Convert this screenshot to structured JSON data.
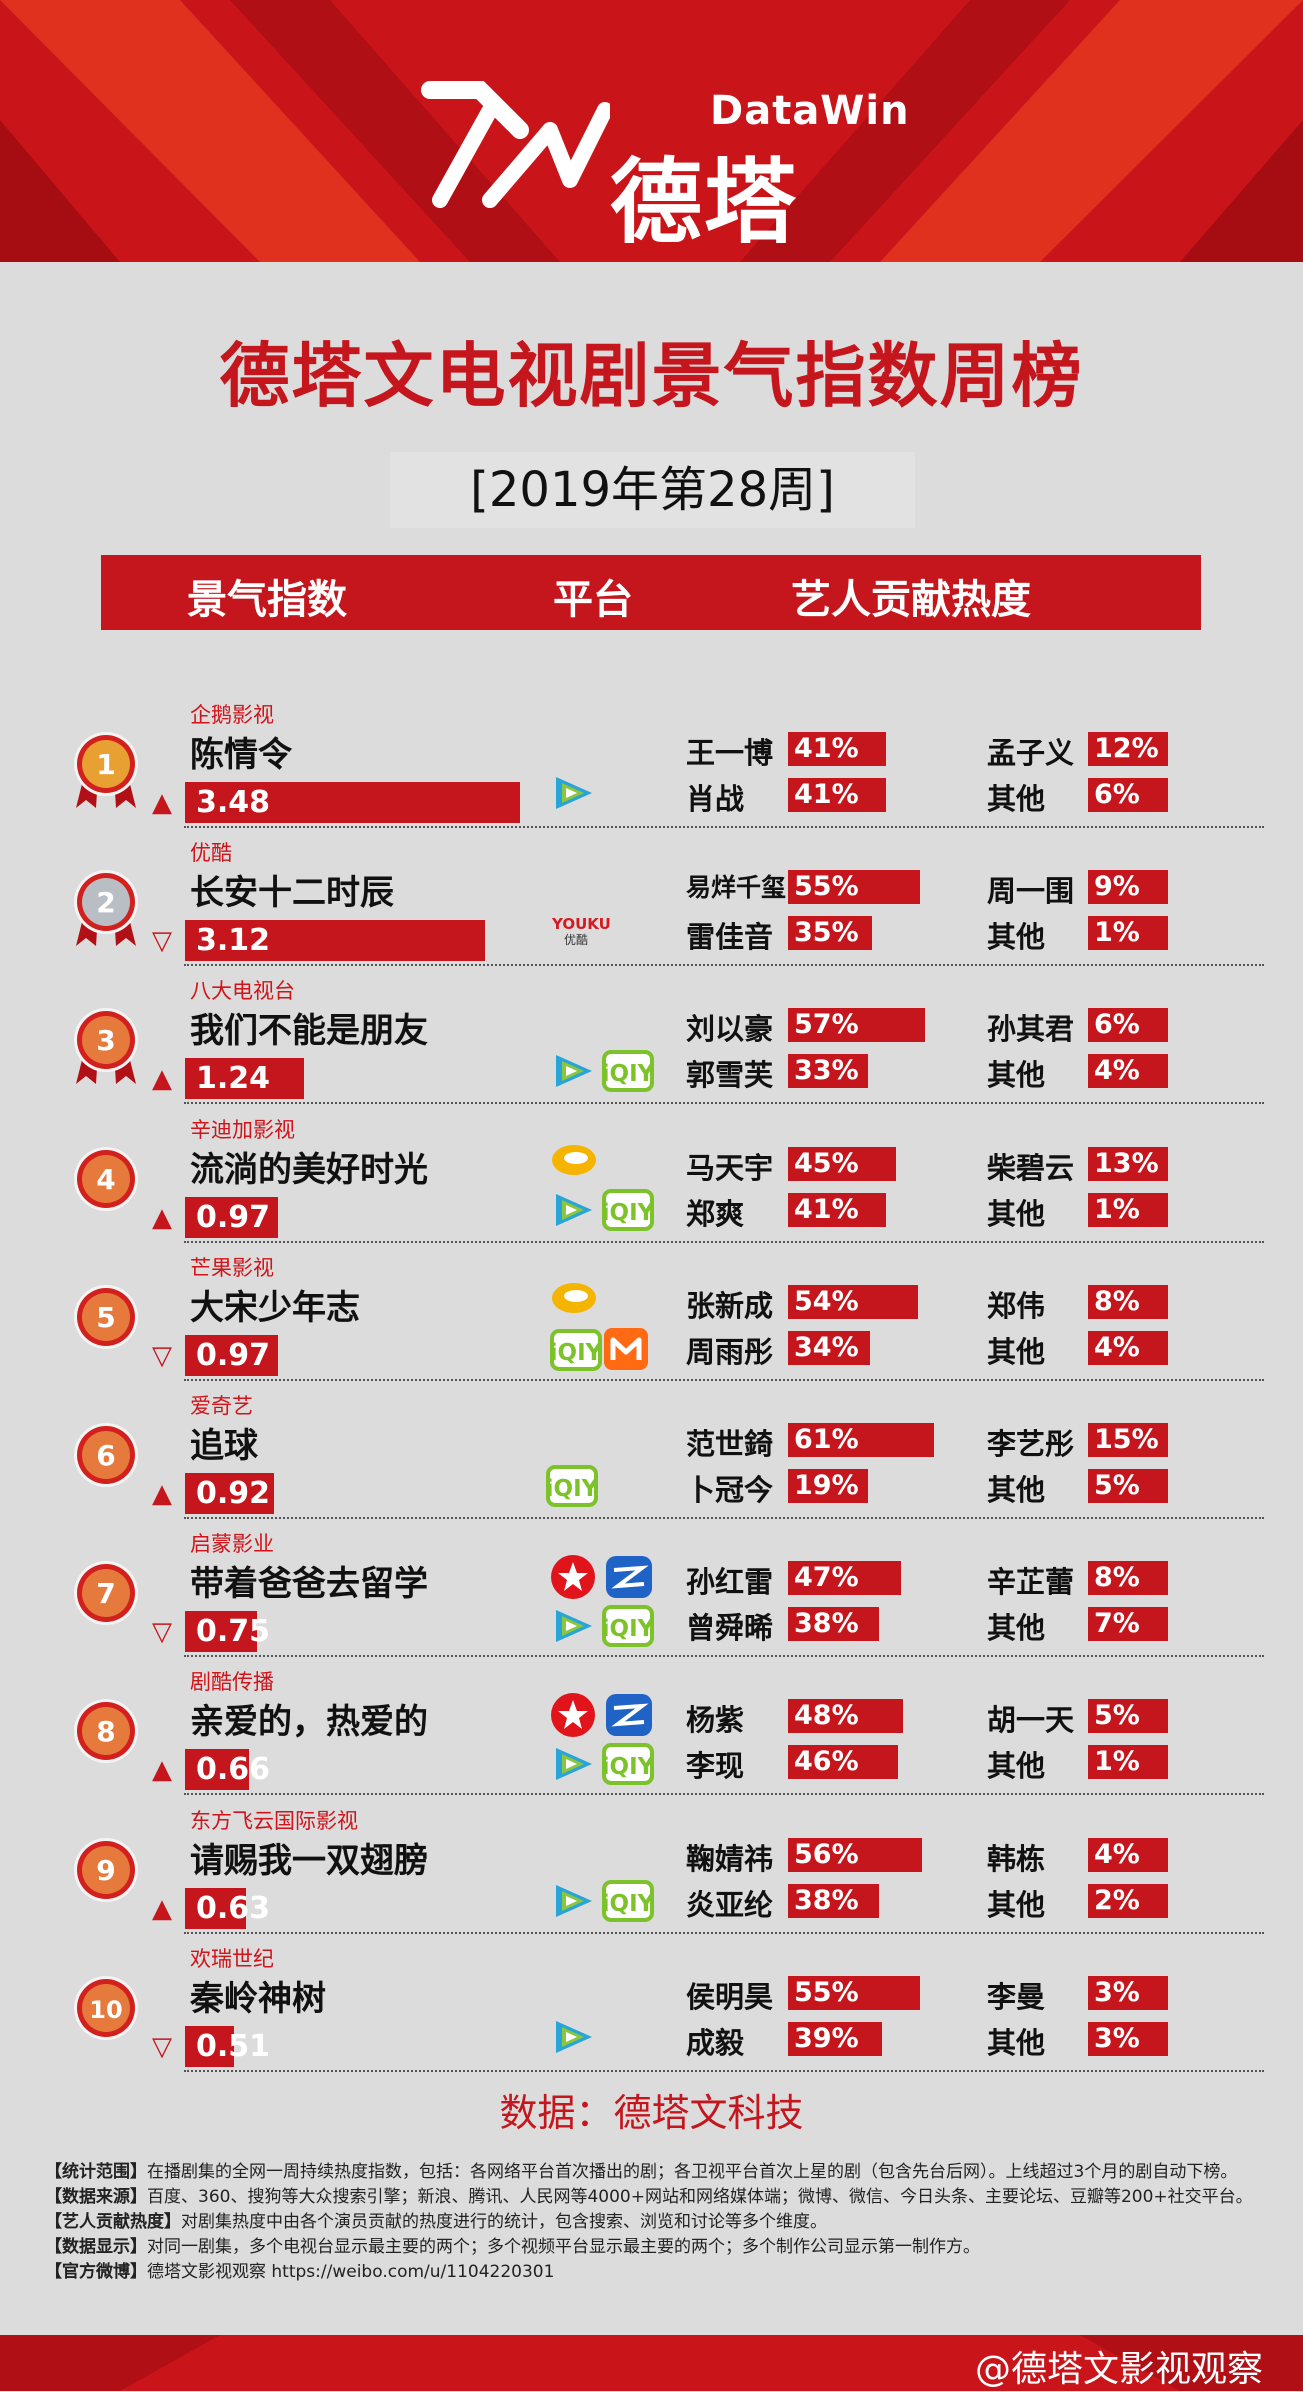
{
  "brand": {
    "en": "DataWin",
    "cn": "德塔文"
  },
  "title": "德塔文电视剧景气指数周榜",
  "week": "[2019年第28周]",
  "columns": {
    "index": "景气指数",
    "platform": "平台",
    "contrib": "艺人贡献热度"
  },
  "source": "数据：德塔文科技",
  "notes": [
    {
      "key": "【统计范围】",
      "text": "在播剧集的全网一周持续热度指数，包括：各网络平台首次播出的剧；各卫视平台首次上星的剧（包含先台后网）。上线超过3个月的剧自动下榜。"
    },
    {
      "key": "【数据来源】",
      "text": "百度、360、搜狗等大众搜索引擎；新浪、腾讯、人民网等4000+网站和网络媒体端；微博、微信、今日头条、主要论坛、豆瓣等200+社交平台。"
    },
    {
      "key": "【艺人贡献热度】",
      "text": "对剧集热度中由各个演员贡献的热度进行的统计，包含搜索、浏览和讨论等多个维度。"
    },
    {
      "key": "【数据显示】",
      "text": "对同一剧集，多个电视台显示最主要的两个；多个视频平台显示最主要的两个；多个制作公司显示第一制作方。"
    },
    {
      "key": "【官方微博】",
      "text": "德塔文影视观察 https://weibo.com/u/1104220301"
    }
  ],
  "watermark": "@德塔文影视观察",
  "colors": {
    "red": "#c4161c",
    "gold": "#e8a032",
    "silver": "#b8bec4",
    "bronze": "#e57a3c"
  },
  "chart_data": {
    "type": "bar",
    "title": "德塔文电视剧景气指数周榜",
    "rows": [
      {
        "rank": "1",
        "company": "企鹅影视",
        "drama": "陈情令",
        "trend": "▲",
        "index": 3.48,
        "index_label": "3.48",
        "platforms": [
          "tencent-video-icon"
        ],
        "artists": [
          {
            "name": "王一博",
            "pct": 41,
            "label": "41%"
          },
          {
            "name": "孟子义",
            "pct": 12,
            "label": "12%"
          },
          {
            "name": "肖战",
            "pct": 41,
            "label": "41%"
          },
          {
            "name": "其他",
            "pct": 6,
            "label": "6%"
          }
        ]
      },
      {
        "rank": "2",
        "company": "优酷",
        "drama": "长安十二时辰",
        "trend": "▽",
        "index": 3.12,
        "index_label": "3.12",
        "platforms": [
          "youku-icon"
        ],
        "youku_text": "YOUKU",
        "youku_cn": "优酷",
        "artists": [
          {
            "name": "易烊千玺",
            "pct": 55,
            "label": "55%"
          },
          {
            "name": "周一围",
            "pct": 9,
            "label": "9%"
          },
          {
            "name": "雷佳音",
            "pct": 35,
            "label": "35%"
          },
          {
            "name": "其他",
            "pct": 1,
            "label": "1%"
          }
        ]
      },
      {
        "rank": "3",
        "company": "八大电视台",
        "drama": "我们不能是朋友",
        "trend": "▲",
        "index": 1.24,
        "index_label": "1.24",
        "platforms": [
          "tencent-video-icon",
          "iqiyi-icon"
        ],
        "artists": [
          {
            "name": "刘以豪",
            "pct": 57,
            "label": "57%"
          },
          {
            "name": "孙其君",
            "pct": 6,
            "label": "6%"
          },
          {
            "name": "郭雪芙",
            "pct": 33,
            "label": "33%"
          },
          {
            "name": "其他",
            "pct": 4,
            "label": "4%"
          }
        ]
      },
      {
        "rank": "4",
        "company": "辛迪加影视",
        "drama": "流淌的美好时光",
        "trend": "▲",
        "index": 0.97,
        "index_label": "0.97",
        "platforms": [
          "hunan-tv-icon",
          "tencent-video-icon",
          "iqiyi-icon"
        ],
        "artists": [
          {
            "name": "马天宇",
            "pct": 45,
            "label": "45%"
          },
          {
            "name": "柴碧云",
            "pct": 13,
            "label": "13%"
          },
          {
            "name": "郑爽",
            "pct": 41,
            "label": "41%"
          },
          {
            "name": "其他",
            "pct": 1,
            "label": "1%"
          }
        ]
      },
      {
        "rank": "5",
        "company": "芒果影视",
        "drama": "大宋少年志",
        "trend": "▽",
        "index": 0.97,
        "index_label": "0.97",
        "platforms": [
          "hunan-tv-icon",
          "iqiyi-icon",
          "mgtv-icon"
        ],
        "artists": [
          {
            "name": "张新成",
            "pct": 54,
            "label": "54%"
          },
          {
            "name": "郑伟",
            "pct": 8,
            "label": "8%"
          },
          {
            "name": "周雨彤",
            "pct": 34,
            "label": "34%"
          },
          {
            "name": "其他",
            "pct": 4,
            "label": "4%"
          }
        ]
      },
      {
        "rank": "6",
        "company": "爱奇艺",
        "drama": "追球",
        "trend": "▲",
        "index": 0.92,
        "index_label": "0.92",
        "platforms": [
          "iqiyi-icon"
        ],
        "artists": [
          {
            "name": "范世錡",
            "pct": 61,
            "label": "61%"
          },
          {
            "name": "李艺彤",
            "pct": 15,
            "label": "15%"
          },
          {
            "name": "卜冠今",
            "pct": 19,
            "label": "19%"
          },
          {
            "name": "其他",
            "pct": 5,
            "label": "5%"
          }
        ]
      },
      {
        "rank": "7",
        "company": "启蒙影业",
        "drama": "带着爸爸去留学",
        "trend": "▽",
        "index": 0.75,
        "index_label": "0.75",
        "platforms": [
          "dragon-tv-icon",
          "zhejiang-tv-icon",
          "tencent-video-icon",
          "iqiyi-icon"
        ],
        "artists": [
          {
            "name": "孙红雷",
            "pct": 47,
            "label": "47%"
          },
          {
            "name": "辛芷蕾",
            "pct": 8,
            "label": "8%"
          },
          {
            "name": "曾舜晞",
            "pct": 38,
            "label": "38%"
          },
          {
            "name": "其他",
            "pct": 7,
            "label": "7%"
          }
        ]
      },
      {
        "rank": "8",
        "company": "剧酷传播",
        "drama": "亲爱的，热爱的",
        "trend": "▲",
        "index": 0.66,
        "index_label": "0.66",
        "platforms": [
          "dragon-tv-icon",
          "zhejiang-tv-icon",
          "tencent-video-icon",
          "iqiyi-icon"
        ],
        "artists": [
          {
            "name": "杨紫",
            "pct": 48,
            "label": "48%"
          },
          {
            "name": "胡一天",
            "pct": 5,
            "label": "5%"
          },
          {
            "name": "李现",
            "pct": 46,
            "label": "46%"
          },
          {
            "name": "其他",
            "pct": 1,
            "label": "1%"
          }
        ]
      },
      {
        "rank": "9",
        "company": "东方飞云国际影视",
        "drama": "请赐我一双翅膀",
        "trend": "▲",
        "index": 0.63,
        "index_label": "0.63",
        "platforms": [
          "tencent-video-icon",
          "iqiyi-icon"
        ],
        "artists": [
          {
            "name": "鞠婧祎",
            "pct": 56,
            "label": "56%"
          },
          {
            "name": "韩栋",
            "pct": 4,
            "label": "4%"
          },
          {
            "name": "炎亚纶",
            "pct": 38,
            "label": "38%"
          },
          {
            "name": "其他",
            "pct": 2,
            "label": "2%"
          }
        ]
      },
      {
        "rank": "10",
        "company": "欢瑞世纪",
        "drama": "秦岭神树",
        "trend": "▽",
        "index": 0.51,
        "index_label": "0.51",
        "platforms": [
          "tencent-video-icon"
        ],
        "artists": [
          {
            "name": "侯明昊",
            "pct": 55,
            "label": "55%"
          },
          {
            "name": "李曼",
            "pct": 3,
            "label": "3%"
          },
          {
            "name": "成毅",
            "pct": 39,
            "label": "39%"
          },
          {
            "name": "其他",
            "pct": 3,
            "label": "3%"
          }
        ]
      }
    ]
  }
}
